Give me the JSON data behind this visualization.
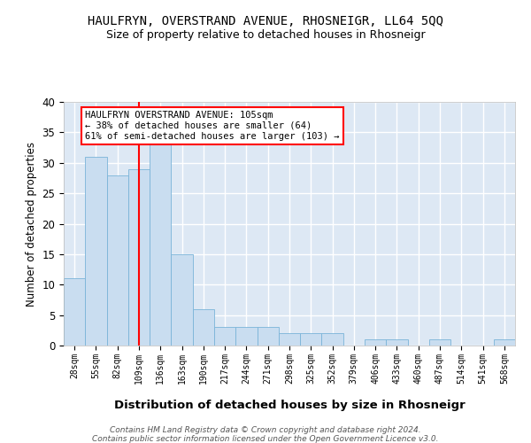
{
  "title": "HAULFRYN, OVERSTRAND AVENUE, RHOSNEIGR, LL64 5QQ",
  "subtitle": "Size of property relative to detached houses in Rhosneigr",
  "xlabel": "Distribution of detached houses by size in Rhosneigr",
  "ylabel": "Number of detached properties",
  "bar_color": "#c9ddf0",
  "bar_edge_color": "#7ab4d8",
  "bg_color": "#dde8f4",
  "grid_color": "#ffffff",
  "tick_labels": [
    "28sqm",
    "55sqm",
    "82sqm",
    "109sqm",
    "136sqm",
    "163sqm",
    "190sqm",
    "217sqm",
    "244sqm",
    "271sqm",
    "298sqm",
    "325sqm",
    "352sqm",
    "379sqm",
    "406sqm",
    "433sqm",
    "460sqm",
    "487sqm",
    "514sqm",
    "541sqm",
    "568sqm"
  ],
  "bar_heights": [
    11,
    31,
    28,
    29,
    33,
    15,
    6,
    3,
    3,
    3,
    2,
    2,
    2,
    0,
    1,
    1,
    0,
    1,
    0,
    0,
    1
  ],
  "vline_x": 3,
  "vline_color": "#ff0000",
  "annotation_title": "HAULFRYN OVERSTRAND AVENUE: 105sqm",
  "annotation_line1": "← 38% of detached houses are smaller (64)",
  "annotation_line2": "61% of semi-detached houses are larger (103) →",
  "ylim": [
    0,
    40
  ],
  "yticks": [
    0,
    5,
    10,
    15,
    20,
    25,
    30,
    35,
    40
  ],
  "footer1": "Contains HM Land Registry data © Crown copyright and database right 2024.",
  "footer2": "Contains public sector information licensed under the Open Government Licence v3.0."
}
